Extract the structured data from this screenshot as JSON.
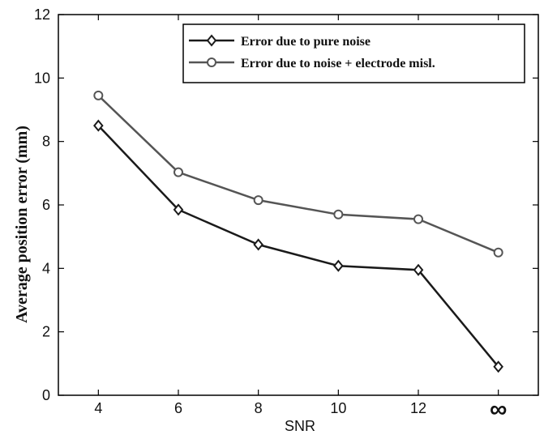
{
  "chart_data": {
    "type": "line",
    "categories": [
      "4",
      "6",
      "8",
      "10",
      "12",
      "∞"
    ],
    "xlabel": "SNR",
    "ylabel": "Average position error (mm)",
    "ylim": [
      0,
      12
    ],
    "yticks": [
      0,
      2,
      4,
      6,
      8,
      10,
      12
    ],
    "grid": false,
    "legend_position": "top-right",
    "series": [
      {
        "name": "Error due to pure noise",
        "marker": "diamond",
        "color": "#1a1a1a",
        "values": [
          8.5,
          5.85,
          4.75,
          4.08,
          3.95,
          0.9
        ]
      },
      {
        "name": "Error due to noise + electrode misl.",
        "marker": "circle",
        "color": "#555555",
        "values": [
          9.45,
          7.03,
          6.15,
          5.7,
          5.55,
          4.5
        ]
      }
    ]
  }
}
